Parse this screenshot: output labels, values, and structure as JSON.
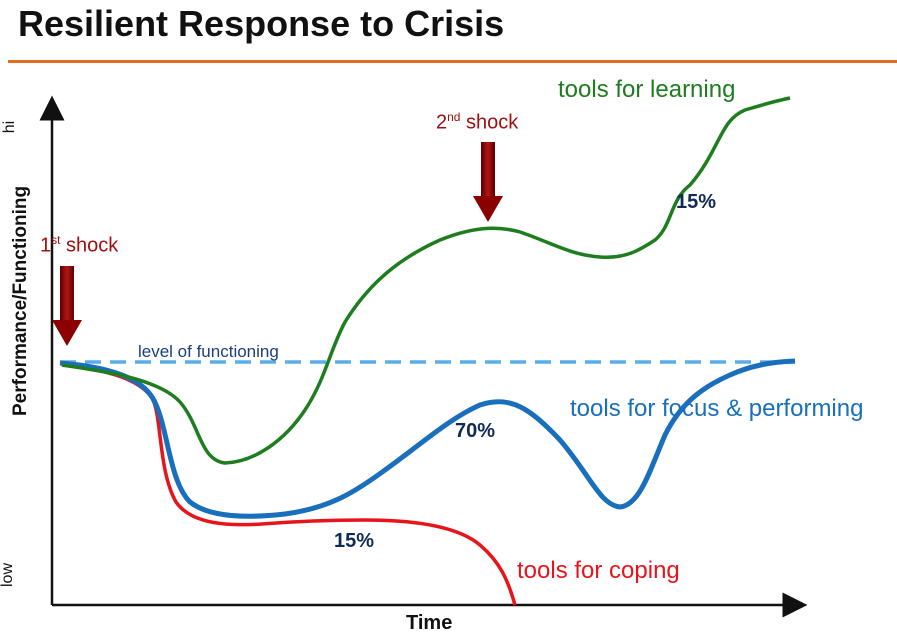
{
  "title": "Resilient Response to Crisis",
  "axes": {
    "y_label": "Performance/Functioning",
    "y_hi": "hi",
    "y_low": "low",
    "x_label": "Time"
  },
  "reference_line": {
    "label": "level of functioning",
    "color": "#5aaee8"
  },
  "shocks": [
    {
      "ordinal_number": "1",
      "ordinal_suffix": "st",
      "text": "shock",
      "color": "#a01010"
    },
    {
      "ordinal_number": "2",
      "ordinal_suffix": "nd",
      "text": "shock",
      "color": "#a01010"
    }
  ],
  "curves": [
    {
      "label": "tools for learning",
      "percent": "15%",
      "color": "#1e7d1e"
    },
    {
      "label": "tools for focus & performing",
      "percent": "70%",
      "color": "#1a6fbd"
    },
    {
      "label": "tools for coping",
      "percent": "15%",
      "color": "#e8141b"
    }
  ]
}
